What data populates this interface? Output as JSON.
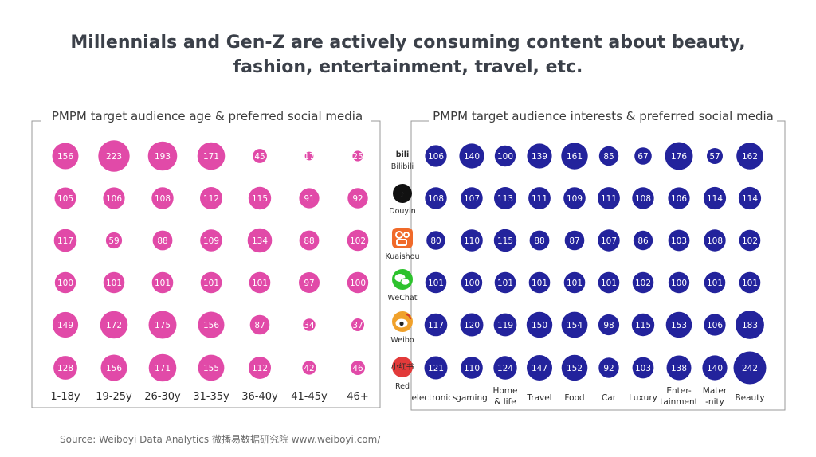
{
  "title": {
    "line1": "Millennials and Gen-Z are actively consuming content about beauty,",
    "line2": "fashion, entertainment, travel, etc."
  },
  "source": {
    "prefix": "Source: Weiboyi Data Analytics",
    "cn": "微播易数据研究院",
    "url": "www.weiboyi.com/"
  },
  "colors": {
    "age_bubble": "#e14aa8",
    "interest_bubble": "#23239c",
    "frame": "#999999",
    "bilibili": "#22a6de",
    "douyin": "#111111",
    "kuaishou": "#f06a2a",
    "wechat": "#2dc22d",
    "weibo": "#f0a12b",
    "red": "#e23a3a"
  },
  "chart_data": [
    {
      "type": "bubble-matrix",
      "title": "PMPM target audience age & preferred social media",
      "rows": [
        "Bilibili",
        "Douyin",
        "Kuaishou",
        "WeChat",
        "Weibo",
        "Red"
      ],
      "columns": [
        "1-18y",
        "19-25y",
        "26-30y",
        "31-35y",
        "36-40y",
        "41-45y",
        "46+"
      ],
      "values": [
        [
          156,
          223,
          193,
          171,
          45,
          17,
          25
        ],
        [
          105,
          106,
          108,
          112,
          115,
          91,
          92
        ],
        [
          117,
          59,
          88,
          109,
          134,
          88,
          102
        ],
        [
          100,
          101,
          101,
          101,
          101,
          97,
          100
        ],
        [
          149,
          172,
          175,
          156,
          87,
          34,
          37
        ],
        [
          128,
          156,
          171,
          155,
          112,
          42,
          46
        ]
      ]
    },
    {
      "type": "bubble-matrix",
      "title": "PMPM target audience interests & preferred social media",
      "rows": [
        "Bilibili",
        "Douyin",
        "Kuaishou",
        "WeChat",
        "Weibo",
        "Red"
      ],
      "columns": [
        [
          "electronics"
        ],
        [
          "gaming"
        ],
        [
          "Home",
          "& life"
        ],
        [
          "Travel"
        ],
        [
          "Food"
        ],
        [
          "Car"
        ],
        [
          "Luxury"
        ],
        [
          "Enter-",
          "tainment"
        ],
        [
          "Mater",
          "-nity"
        ],
        [
          "Beauty"
        ]
      ],
      "values": [
        [
          106,
          140,
          100,
          139,
          161,
          85,
          67,
          176,
          57,
          162
        ],
        [
          108,
          107,
          113,
          111,
          109,
          111,
          108,
          106,
          114,
          114
        ],
        [
          80,
          110,
          115,
          88,
          87,
          107,
          86,
          103,
          108,
          102
        ],
        [
          101,
          100,
          101,
          101,
          101,
          101,
          102,
          100,
          101,
          101
        ],
        [
          117,
          120,
          119,
          150,
          154,
          98,
          115,
          153,
          106,
          183
        ],
        [
          121,
          110,
          124,
          147,
          152,
          92,
          103,
          138,
          140,
          242
        ]
      ]
    }
  ],
  "platforms": [
    {
      "name": "Bilibili",
      "icon": "bilibili-icon",
      "glyph": "bili"
    },
    {
      "name": "Douyin",
      "icon": "douyin-icon",
      "glyph": "♪"
    },
    {
      "name": "Kuaishou",
      "icon": "kuaishou-icon",
      "glyph": ""
    },
    {
      "name": "WeChat",
      "icon": "wechat-icon",
      "glyph": ""
    },
    {
      "name": "Weibo",
      "icon": "weibo-icon",
      "glyph": ""
    },
    {
      "name": "Red",
      "icon": "red-icon",
      "glyph": "小红书"
    }
  ]
}
